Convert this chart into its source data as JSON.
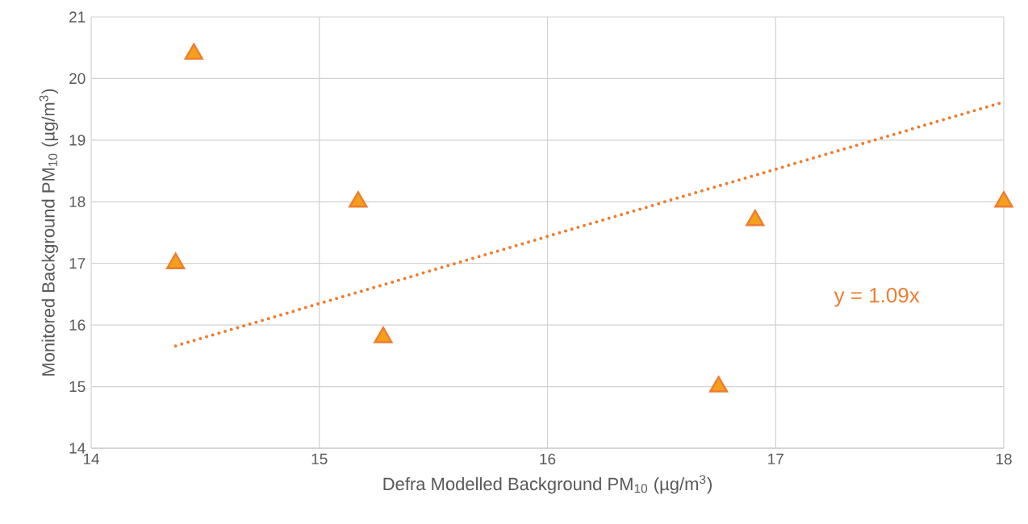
{
  "chart_data": {
    "type": "scatter",
    "xlabel": "Defra Modelled Background PM$_{10}$ (µg/m$^{3}$)",
    "ylabel": "Monitored Background PM$_{10}$ (µg/m$^{3}$)",
    "series": [
      {
        "color": "#f5a01a",
        "marker": "triangle",
        "x": [
          14.37,
          14.45,
          15.17,
          15.28,
          16.75,
          16.91,
          18.0
        ],
        "values": [
          17.0,
          20.4,
          18.0,
          15.8,
          15.0,
          17.7,
          18.0
        ]
      },
      {
        "type": "line",
        "color": "#ed7d31",
        "marker": "none",
        "line_style": "dotted",
        "x": [
          14.37,
          18.0
        ],
        "values": [
          15.66,
          19.62
        ]
      }
    ],
    "xlim": [
      14,
      18
    ],
    "ylim": [
      14,
      21
    ],
    "xticks": [
      14,
      15,
      16,
      17,
      18
    ],
    "yticks": [
      14,
      15,
      16,
      17,
      18,
      19,
      20,
      21
    ],
    "grid": true,
    "annotations": [
      "y = 1.09x"
    ]
  }
}
